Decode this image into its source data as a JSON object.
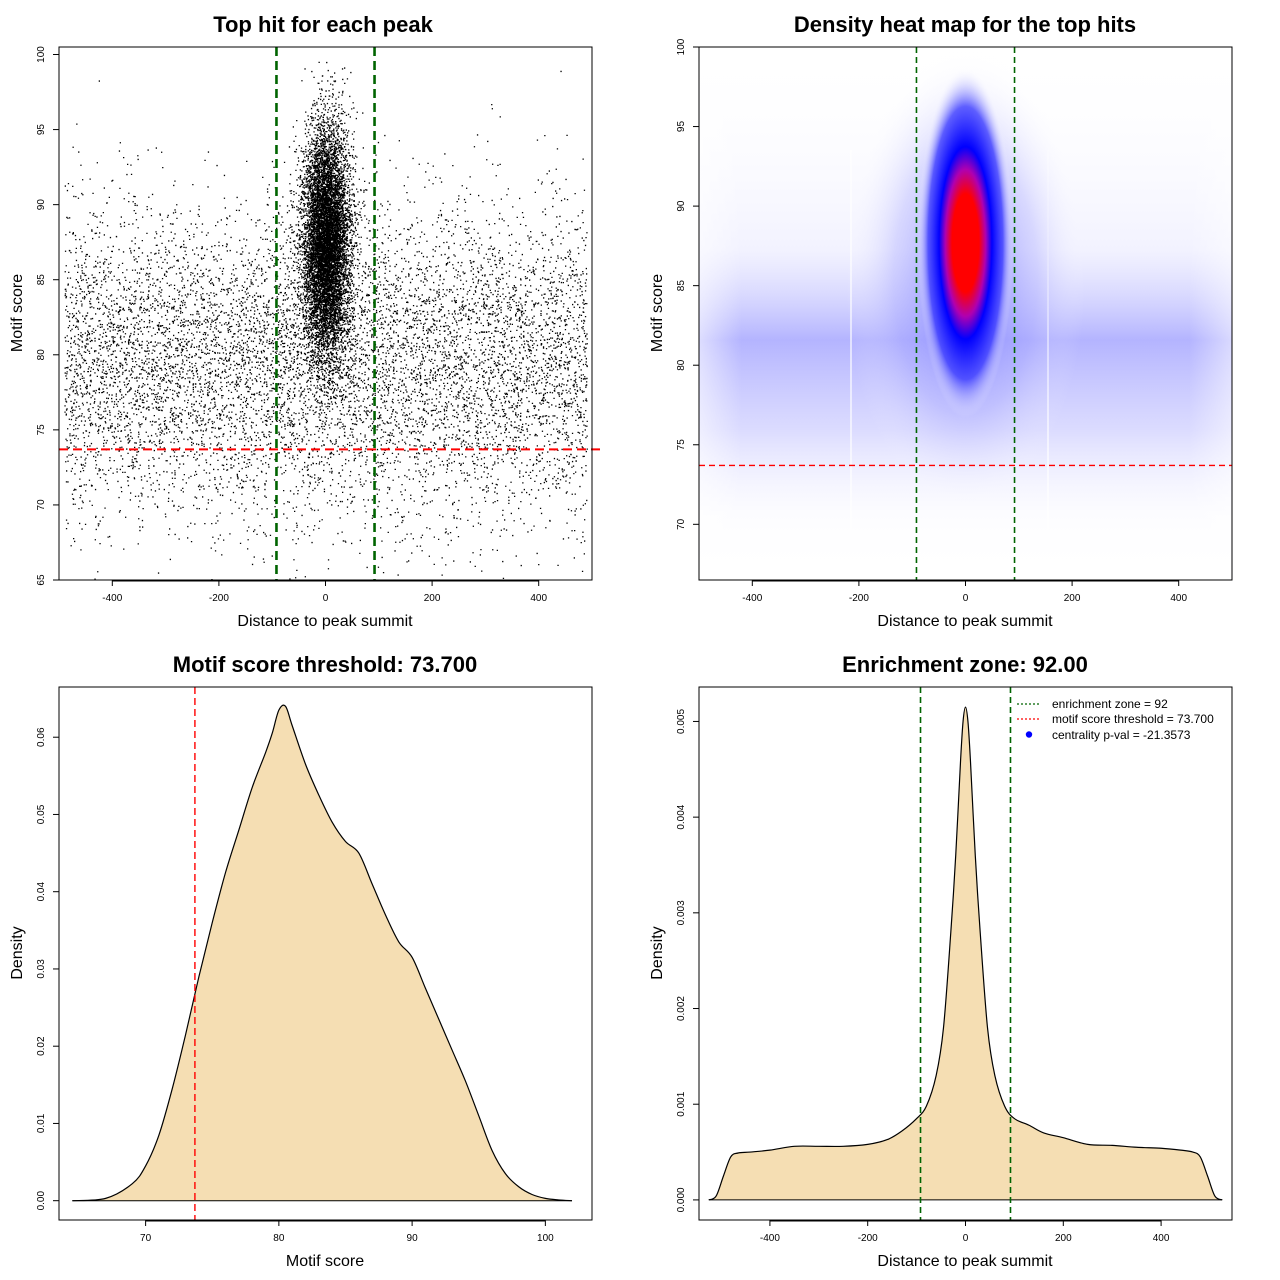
{
  "chart_data": [
    {
      "type": "scatter",
      "title": "Top hit for each peak",
      "xlabel": "Distance to peak summit",
      "ylabel": "Motif score",
      "xlim": [
        -500,
        500
      ],
      "ylim": [
        65,
        100.5
      ],
      "xticks": [
        -400,
        -200,
        0,
        200,
        400
      ],
      "yticks": [
        65,
        70,
        75,
        80,
        85,
        90,
        95,
        100
      ],
      "vlines": [
        -92,
        92
      ],
      "hline": 73.7,
      "background_points": {
        "count": 9000,
        "x_range": [
          -490,
          490
        ],
        "y_mean": 79.5,
        "y_sd": 5.2
      },
      "central_points": {
        "count": 9000,
        "x_mean": 0,
        "x_sd": 22,
        "y_mean": 87.5,
        "y_sd": 3.8
      }
    },
    {
      "type": "heatmap",
      "title": "Density heat map for the top hits",
      "xlabel": "Distance to peak summit",
      "ylabel": "Motif score",
      "xlim": [
        -500,
        500
      ],
      "ylim": [
        66.5,
        100
      ],
      "xticks": [
        -400,
        -200,
        0,
        200,
        400
      ],
      "yticks": [
        70,
        75,
        80,
        85,
        90,
        95,
        100
      ],
      "vlines": [
        -92,
        92
      ],
      "hline": 73.7,
      "peak": {
        "x": 0,
        "y": 88
      },
      "colors": [
        "#ffffff",
        "#0000ff",
        "#ff0000"
      ]
    },
    {
      "type": "area",
      "title": "Motif score threshold: 73.700",
      "xlabel": "Motif score",
      "ylabel": "Density",
      "xlim": [
        63.5,
        103.5
      ],
      "ylim": [
        -0.0025,
        0.0665
      ],
      "xticks": [
        70,
        80,
        90,
        100
      ],
      "yticks": [
        0.0,
        0.01,
        0.02,
        0.03,
        0.04,
        0.05,
        0.06
      ],
      "ytick_labels": [
        "0.00",
        "0.01",
        "0.02",
        "0.03",
        "0.04",
        "0.05",
        "0.06"
      ],
      "vline": 73.7,
      "x": [
        64.5,
        67,
        69,
        70,
        71,
        72,
        73,
        74,
        75,
        76,
        77,
        78,
        79,
        79.5,
        80,
        80.5,
        81,
        82,
        83,
        84,
        85,
        86,
        87,
        88,
        89,
        90,
        91,
        92,
        93,
        94,
        95,
        96,
        97,
        98,
        99,
        100,
        101,
        102
      ],
      "values": [
        0,
        0.0003,
        0.0022,
        0.0045,
        0.0085,
        0.0145,
        0.0215,
        0.029,
        0.036,
        0.0425,
        0.048,
        0.0535,
        0.058,
        0.0605,
        0.0635,
        0.064,
        0.0615,
        0.0565,
        0.0525,
        0.049,
        0.0465,
        0.045,
        0.041,
        0.037,
        0.0335,
        0.0315,
        0.0275,
        0.0235,
        0.0195,
        0.0155,
        0.011,
        0.0065,
        0.0035,
        0.0018,
        0.0008,
        0.0003,
        0.0001,
        0
      ]
    },
    {
      "type": "area",
      "title": "Enrichment zone: 92.00",
      "xlabel": "Distance to peak summit",
      "ylabel": "Density",
      "xlim": [
        -545,
        545
      ],
      "ylim": [
        -0.00021,
        0.00536
      ],
      "xticks": [
        -400,
        -200,
        0,
        200,
        400
      ],
      "yticks": [
        0.0,
        0.001,
        0.002,
        0.003,
        0.004,
        0.005
      ],
      "ytick_labels": [
        "0.000",
        "0.001",
        "0.002",
        "0.003",
        "0.004",
        "0.005"
      ],
      "vlines": [
        -92,
        92
      ],
      "x": [
        -525,
        -510,
        -495,
        -480,
        -465,
        -440,
        -400,
        -350,
        -300,
        -250,
        -200,
        -160,
        -130,
        -100,
        -80,
        -60,
        -45,
        -30,
        -20,
        -10,
        -5,
        0,
        5,
        10,
        20,
        30,
        45,
        60,
        80,
        100,
        130,
        160,
        200,
        250,
        300,
        350,
        400,
        440,
        465,
        480,
        495,
        510,
        525
      ],
      "values": [
        0,
        4e-05,
        0.00025,
        0.00045,
        0.00049,
        0.0005,
        0.00052,
        0.00056,
        0.00056,
        0.00056,
        0.00058,
        0.00063,
        0.00072,
        0.00085,
        0.00098,
        0.0013,
        0.0018,
        0.0028,
        0.0036,
        0.0046,
        0.005,
        0.00515,
        0.005,
        0.0046,
        0.0036,
        0.0028,
        0.0018,
        0.0013,
        0.00098,
        0.00085,
        0.00078,
        0.0007,
        0.00065,
        0.00058,
        0.00057,
        0.00055,
        0.00054,
        0.00052,
        0.0005,
        0.00045,
        0.00025,
        4e-05,
        0
      ],
      "legend": [
        {
          "label": "enrichment zone = 92",
          "color": "#006400",
          "style": "dotted-line"
        },
        {
          "label": "motif score threshold = 73.700",
          "color": "#ff0000",
          "style": "dotted-line"
        },
        {
          "label": "centrality p-val = -21.3573",
          "color": "#0000ff",
          "style": "point"
        }
      ],
      "legend_position": "top-right"
    }
  ]
}
